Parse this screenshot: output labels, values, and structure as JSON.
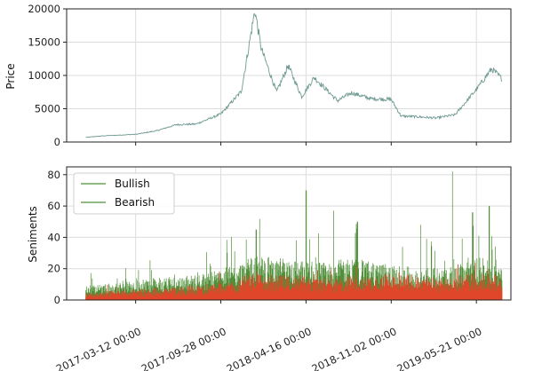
{
  "colors": {
    "price": "#6e9a92",
    "bullish": "#4f8f38",
    "bearish": "#e0472a",
    "grid": "#dcdcdc",
    "axis": "#222222"
  },
  "chart_data": [
    {
      "type": "line",
      "ylabel": "Price",
      "ylim": [
        0,
        20000
      ],
      "yticks": [
        "0",
        "5000",
        "10000",
        "15000",
        "20000"
      ],
      "grid": true,
      "x_range": [
        "2016-10-01",
        "2019-08-10"
      ],
      "series": [
        {
          "x": [
            "2016-11-15",
            "2017-01-01",
            "2017-03-12",
            "2017-05-01",
            "2017-06-15",
            "2017-08-01",
            "2017-09-28",
            "2017-11-15",
            "2017-12-17",
            "2018-01-01",
            "2018-02-06",
            "2018-03-05",
            "2018-04-06",
            "2018-05-05",
            "2018-06-29",
            "2018-08-01",
            "2018-09-15",
            "2018-11-02",
            "2018-11-25",
            "2019-01-01",
            "2019-02-15",
            "2019-04-01",
            "2019-05-21",
            "2019-06-26",
            "2019-07-20"
          ],
          "y": [
            700,
            950,
            1150,
            1700,
            2600,
            2700,
            4200,
            7600,
            19800,
            14000,
            7500,
            11500,
            6800,
            9700,
            6200,
            7400,
            6500,
            6400,
            3900,
            3800,
            3600,
            4100,
            7900,
            11000,
            9500
          ]
        }
      ]
    },
    {
      "type": "area",
      "ylabel": "Seniments",
      "ylim": [
        0,
        85
      ],
      "yticks": [
        "0",
        "20",
        "40",
        "60",
        "80"
      ],
      "xticklabels": [
        "2017-03-12 00:00",
        "2017-09-28 00:00",
        "2018-04-16 00:00",
        "2018-11-02 00:00",
        "2019-05-21 00:00"
      ],
      "grid": true,
      "legend_position": "top-left",
      "series": [
        {
          "name": "Bullish",
          "x": [
            "2016-11-15",
            "2017-02-01",
            "2017-05-01",
            "2017-08-01",
            "2017-11-01",
            "2017-12-20",
            "2018-02-01",
            "2018-04-16",
            "2018-06-01",
            "2018-08-01",
            "2018-10-01",
            "2018-11-02",
            "2019-01-01",
            "2019-03-01",
            "2019-04-15",
            "2019-05-21",
            "2019-07-20"
          ],
          "y": [
            6,
            7,
            9,
            10,
            14,
            18,
            17,
            16,
            15,
            17,
            15,
            14,
            13,
            13,
            15,
            17,
            16
          ],
          "spikes": [
            [
              "2017-12-20",
              45
            ],
            [
              "2018-04-16",
              70
            ],
            [
              "2018-06-20",
              57
            ],
            [
              "2018-08-15",
              50
            ],
            [
              "2019-01-10",
              48
            ],
            [
              "2019-03-26",
              82
            ],
            [
              "2019-05-12",
              56
            ],
            [
              "2019-06-20",
              60
            ]
          ]
        },
        {
          "name": "Bearish",
          "x": [
            "2016-11-15",
            "2017-02-01",
            "2017-05-01",
            "2017-08-01",
            "2017-11-01",
            "2017-12-20",
            "2018-02-01",
            "2018-04-16",
            "2018-06-01",
            "2018-08-01",
            "2018-10-01",
            "2018-11-02",
            "2019-01-01",
            "2019-03-01",
            "2019-04-15",
            "2019-05-21",
            "2019-07-20"
          ],
          "y": [
            3,
            4,
            5,
            6,
            8,
            12,
            10,
            10,
            9,
            10,
            9,
            12,
            10,
            9,
            10,
            11,
            10
          ]
        }
      ]
    }
  ]
}
